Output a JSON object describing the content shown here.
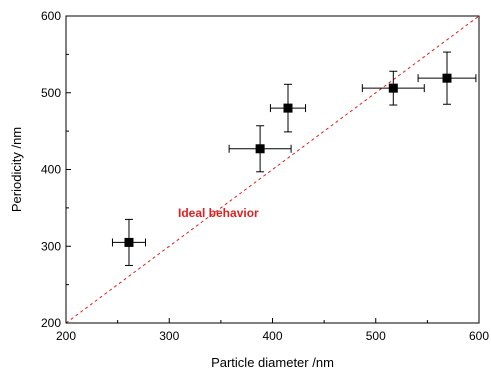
{
  "chart_data": {
    "type": "scatter",
    "xlabel": "Particle diameter /nm",
    "ylabel": "Periodicity /nm",
    "xlim": [
      200,
      600
    ],
    "ylim": [
      200,
      600
    ],
    "x_ticks": [
      200,
      300,
      400,
      500,
      600
    ],
    "y_ticks": [
      200,
      300,
      400,
      500,
      600
    ],
    "grid": false,
    "series": [
      {
        "marker": "square",
        "color": "#000000",
        "points": [
          {
            "x": 261,
            "y": 305,
            "xerr": 16,
            "yerr": 30
          },
          {
            "x": 388,
            "y": 427,
            "xerr": 30,
            "yerr": 30
          },
          {
            "x": 415,
            "y": 480,
            "xerr": 17,
            "yerr": 31
          },
          {
            "x": 517,
            "y": 506,
            "xerr": 30,
            "yerr": 22
          },
          {
            "x": 569,
            "y": 519,
            "xerr": 28,
            "yerr": 34
          }
        ]
      }
    ],
    "reference_line": {
      "label": "Ideal behavior",
      "from": [
        200,
        200
      ],
      "to": [
        600,
        600
      ],
      "color": "#e02020",
      "style": "dashed"
    }
  }
}
